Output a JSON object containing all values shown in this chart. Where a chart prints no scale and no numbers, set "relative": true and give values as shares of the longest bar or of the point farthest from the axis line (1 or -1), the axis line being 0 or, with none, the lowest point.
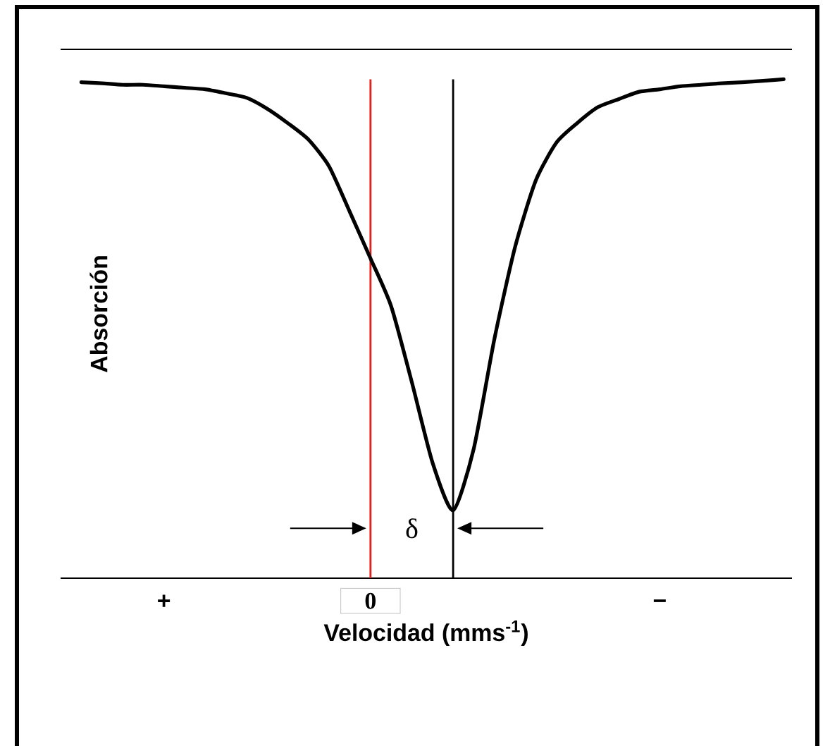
{
  "chart_data": {
    "type": "line",
    "relative": true,
    "xlabel": "Velocidad (mms$^{-1}$)",
    "ylabel": "Absorción",
    "categories": [
      null,
      null,
      null,
      null,
      "+",
      null,
      null,
      null,
      null,
      null,
      null,
      null,
      null,
      null,
      "0",
      null,
      null,
      null,
      null,
      null,
      null,
      null,
      null,
      null,
      null,
      null,
      null,
      null,
      "−",
      null,
      null,
      null,
      null,
      null,
      null
    ],
    "series": [
      {
        "color": "#000000",
        "values": [
          0.994,
          0.992,
          0.989,
          0.989,
          0.986,
          0.983,
          0.98,
          0.972,
          0.963,
          0.941,
          0.912,
          0.879,
          0.825,
          0.734,
          0.641,
          0.545,
          0.393,
          0.232,
          0.136,
          0.26,
          0.48,
          0.664,
          0.797,
          0.873,
          0.912,
          0.944,
          0.96,
          0.975,
          0.98,
          0.986,
          0.989,
          0.992,
          0.994,
          0.997,
          1.0
        ]
      }
    ],
    "ref_lines": [
      {
        "axis": "x",
        "value": "0",
        "color": "#e0201c"
      },
      {
        "axis": "y",
        "value": 1.06,
        "color": "#000000"
      }
    ],
    "annotations": [
      "δ"
    ],
    "grid": false,
    "marker": "none",
    "line_style": "solid"
  }
}
